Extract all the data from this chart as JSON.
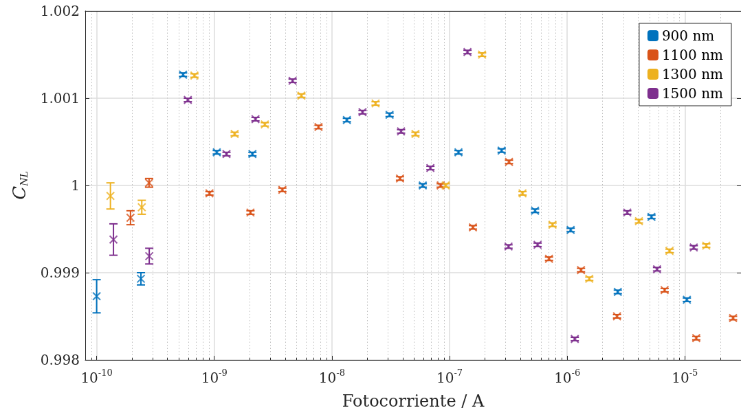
{
  "chart_data": {
    "type": "scatter",
    "xlabel": "Fotocorriente / A",
    "ylabel": "C$_{NL}$",
    "log": "x",
    "grid": true,
    "legend": "top right",
    "marker": "cross",
    "xlim": [
      8e-11,
      3e-05
    ],
    "ylim": [
      0.998,
      1.002
    ],
    "xticks": [
      {
        "value": 1e-10,
        "label": "10$^{-10}$"
      },
      {
        "value": 1e-09,
        "label": "10$^{-9}$"
      },
      {
        "value": 1e-08,
        "label": "10$^{-8}$"
      },
      {
        "value": 1e-07,
        "label": "10$^{-7}$"
      },
      {
        "value": 1e-06,
        "label": "10$^{-6}$"
      },
      {
        "value": 1e-05,
        "label": "10$^{-5}$"
      }
    ],
    "yticks": [
      0.998,
      0.999,
      {
        "value": 1,
        "label": "1"
      },
      1.001,
      1.002
    ],
    "series": [
      {
        "name": "900 nm",
        "color": "#0072bd",
        "x": [
          1e-10,
          2.38e-10,
          5.43e-10,
          1.05e-09,
          2.11e-09,
          1.34e-08,
          3.09e-08,
          5.92e-08,
          1.19e-07,
          2.77e-07,
          5.33e-07,
          1.07e-06,
          2.69e-06,
          5.2e-06,
          1.04e-05
        ],
        "values": [
          0.99873,
          0.99893,
          1.00127,
          1.00038,
          1.00036,
          1.00075,
          1.00081,
          1.0,
          1.00038,
          1.0004,
          0.99971,
          0.99949,
          0.99878,
          0.99964,
          0.99869
        ],
        "errors": [
          0.00019,
          7e-05,
          2e-05,
          2e-05,
          2e-05,
          2e-05,
          2e-05,
          2e-05,
          2e-05,
          2e-05,
          2e-05,
          2e-05,
          2e-05,
          2e-05,
          2e-05
        ]
      },
      {
        "name": "1100 nm",
        "color": "#d95319",
        "x": [
          1.94e-10,
          2.79e-10,
          9.1e-10,
          2.03e-09,
          3.79e-09,
          7.69e-09,
          3.79e-08,
          8.4e-08,
          1.58e-07,
          3.2e-07,
          7e-07,
          1.31e-06,
          2.65e-06,
          6.73e-06,
          1.25e-05,
          2.57e-05
        ],
        "values": [
          0.99963,
          1.00003,
          0.99991,
          0.99969,
          0.99995,
          1.00067,
          1.00008,
          1.0,
          0.99952,
          1.00027,
          0.99916,
          0.99903,
          0.9985,
          0.9988,
          0.99825,
          0.99848
        ],
        "errors": [
          8e-05,
          5e-05,
          2e-05,
          2e-05,
          2e-05,
          2e-05,
          2e-05,
          2e-05,
          2e-05,
          2e-05,
          2e-05,
          2e-05,
          2e-05,
          2e-05,
          2e-05,
          2e-05
        ]
      },
      {
        "name": "1300 nm",
        "color": "#edb120",
        "x": [
          1.31e-10,
          2.42e-10,
          6.78e-10,
          1.49e-09,
          2.69e-09,
          5.5e-09,
          2.35e-08,
          5.13e-08,
          9.27e-08,
          1.89e-07,
          4.17e-07,
          7.5e-07,
          1.54e-06,
          4.07e-06,
          7.4e-06,
          1.52e-05
        ],
        "values": [
          0.99988,
          0.99975,
          1.00126,
          1.00059,
          1.0007,
          1.00103,
          1.00094,
          1.00059,
          1.0,
          1.0015,
          0.99991,
          0.99955,
          0.99893,
          0.99959,
          0.99925,
          0.99931
        ],
        "errors": [
          0.00015,
          8e-05,
          2e-05,
          2e-05,
          2e-05,
          2e-05,
          2e-05,
          2e-05,
          2e-05,
          2e-05,
          2e-05,
          2e-05,
          2e-05,
          2e-05,
          2e-05,
          2e-05
        ]
      },
      {
        "name": "1500 nm",
        "color": "#7e2f8e",
        "x": [
          1.39e-10,
          2.8e-10,
          5.96e-10,
          1.27e-09,
          2.24e-09,
          4.63e-09,
          1.82e-08,
          3.87e-08,
          6.87e-08,
          1.42e-07,
          3.17e-07,
          5.6e-07,
          1.16e-06,
          3.24e-06,
          5.8e-06,
          1.19e-05
        ],
        "values": [
          0.99938,
          0.99919,
          1.00098,
          1.00036,
          1.00076,
          1.0012,
          1.00084,
          1.00062,
          1.0002,
          1.00153,
          0.9993,
          0.99932,
          0.99824,
          0.99969,
          0.99904,
          0.99929
        ],
        "errors": [
          0.00018,
          9e-05,
          2e-05,
          2e-05,
          2e-05,
          2e-05,
          2e-05,
          2e-05,
          2e-05,
          2e-05,
          2e-05,
          2e-05,
          2e-05,
          2e-05,
          2e-05,
          2e-05
        ]
      }
    ]
  }
}
